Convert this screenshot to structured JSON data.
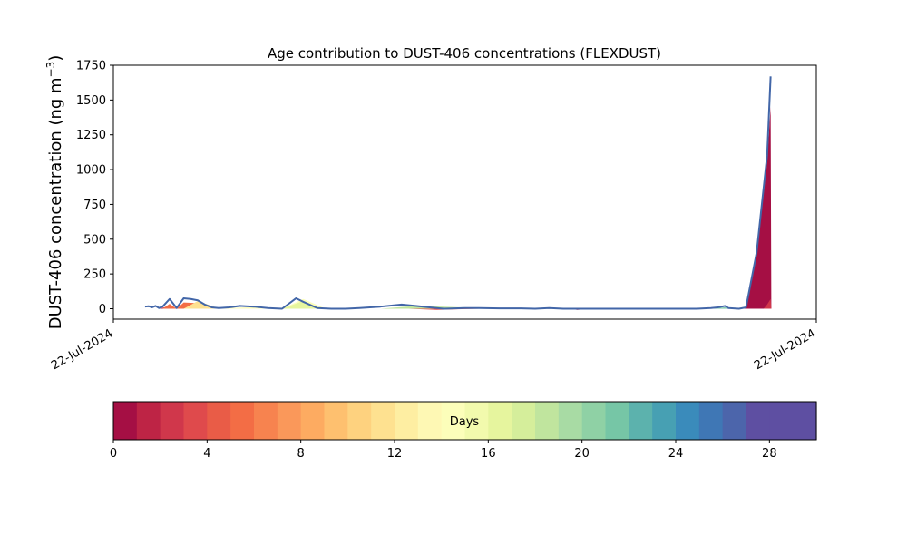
{
  "chart_data": {
    "type": "area",
    "title": "Age contribution to DUST-406 concentrations (FLEXDUST)",
    "ylabel": "DUST-406 concentration (ng m",
    "ylabel_exponent": "−3",
    "ylabel_close": ")",
    "xlabel": "",
    "x_tick_labels": [
      "22-Jul-2024",
      "22-Jul-2024"
    ],
    "ylim": [
      -75,
      1750
    ],
    "y_ticks": [
      0,
      250,
      500,
      750,
      1000,
      1250,
      1500,
      1750
    ],
    "x_domain": [
      0,
      1
    ],
    "total_series": {
      "x": [
        0.045,
        0.05,
        0.055,
        0.06,
        0.065,
        0.07,
        0.08,
        0.09,
        0.1,
        0.11,
        0.12,
        0.13,
        0.14,
        0.15,
        0.165,
        0.18,
        0.2,
        0.22,
        0.24,
        0.26,
        0.27,
        0.29,
        0.31,
        0.33,
        0.35,
        0.38,
        0.41,
        0.43,
        0.45,
        0.47,
        0.5,
        0.52,
        0.55,
        0.58,
        0.6,
        0.62,
        0.64,
        0.66,
        0.68,
        0.7,
        0.72,
        0.75,
        0.78,
        0.8,
        0.83,
        0.85,
        0.86,
        0.87,
        0.875,
        0.89,
        0.9,
        0.915,
        0.93,
        0.935
      ],
      "y": [
        15,
        18,
        10,
        20,
        5,
        15,
        70,
        5,
        75,
        70,
        60,
        30,
        10,
        5,
        10,
        20,
        15,
        5,
        0,
        75,
        50,
        5,
        0,
        0,
        5,
        15,
        30,
        20,
        10,
        0,
        5,
        5,
        2,
        2,
        0,
        5,
        0,
        0,
        0,
        0,
        0,
        0,
        0,
        0,
        0,
        5,
        10,
        20,
        5,
        0,
        10,
        400,
        1100,
        1670
      ]
    },
    "stack_areas": [
      {
        "day": 1,
        "x": [
          0.045,
          0.065,
          0.08,
          0.09,
          0.1,
          0.13,
          0.15
        ],
        "y": [
          0,
          0,
          20,
          0,
          30,
          15,
          0
        ]
      },
      {
        "day": 5,
        "x": [
          0.07,
          0.08,
          0.09,
          0.1,
          0.12,
          0.14,
          0.15
        ],
        "y": [
          0,
          35,
          0,
          45,
          40,
          10,
          0
        ]
      },
      {
        "day": 11,
        "x": [
          0.1,
          0.12,
          0.14,
          0.15,
          0.17,
          0.2,
          0.22
        ],
        "y": [
          0,
          55,
          20,
          0,
          5,
          10,
          0
        ]
      },
      {
        "day": 14,
        "x": [
          0.14,
          0.16,
          0.2,
          0.24,
          0.27,
          0.3,
          0.32
        ],
        "y": [
          0,
          5,
          10,
          0,
          70,
          5,
          0
        ]
      },
      {
        "day": 16,
        "x": [
          0.24,
          0.27,
          0.29,
          0.31
        ],
        "y": [
          0,
          55,
          10,
          0
        ]
      },
      {
        "day": 18,
        "x": [
          0.38,
          0.43,
          0.47,
          0.52,
          0.56
        ],
        "y": [
          0,
          20,
          15,
          5,
          0
        ]
      },
      {
        "day": 3,
        "x": [
          0.42,
          0.46,
          0.52
        ],
        "y": [
          0,
          -8,
          0
        ]
      },
      {
        "day": 0,
        "x": [
          0.64,
          0.66,
          0.68
        ],
        "y": [
          0,
          -8,
          0
        ]
      },
      {
        "day": 21,
        "x": [
          0.78,
          0.82,
          0.86,
          0.87,
          0.875
        ],
        "y": [
          0,
          3,
          5,
          10,
          0
        ]
      },
      {
        "day": 0,
        "x": [
          0.885,
          0.9,
          0.915,
          0.93,
          0.935,
          0.936
        ],
        "y": [
          0,
          10,
          380,
          1050,
          1450,
          0
        ]
      },
      {
        "day": 2,
        "x": [
          0.925,
          0.93,
          0.935,
          0.936
        ],
        "y": [
          0,
          30,
          70,
          0
        ]
      }
    ],
    "colorbar": {
      "label": "Days",
      "min": 0,
      "max": 30,
      "ticks": [
        0,
        4,
        8,
        12,
        16,
        20,
        24,
        28
      ],
      "colors": [
        "#a50f44",
        "#be2445",
        "#d0374b",
        "#df4a4c",
        "#e95c47",
        "#f36d45",
        "#f7834f",
        "#fa985a",
        "#fdab61",
        "#fec06f",
        "#fed27f",
        "#fee190",
        "#feeea2",
        "#fef8b4",
        "#fcfeba",
        "#f2faad",
        "#e6f59e",
        "#d5ee9b",
        "#c0e59e",
        "#a8dba4",
        "#8fd1a5",
        "#76c6a6",
        "#5cb2ad",
        "#47a0b3",
        "#3a8bbb",
        "#3f77b5",
        "#4c65ab",
        "#5e4fa2",
        "#5e4fa2",
        "#5e4fa2"
      ]
    },
    "line_color": "#4266a8",
    "grid": false,
    "legend": "none"
  }
}
